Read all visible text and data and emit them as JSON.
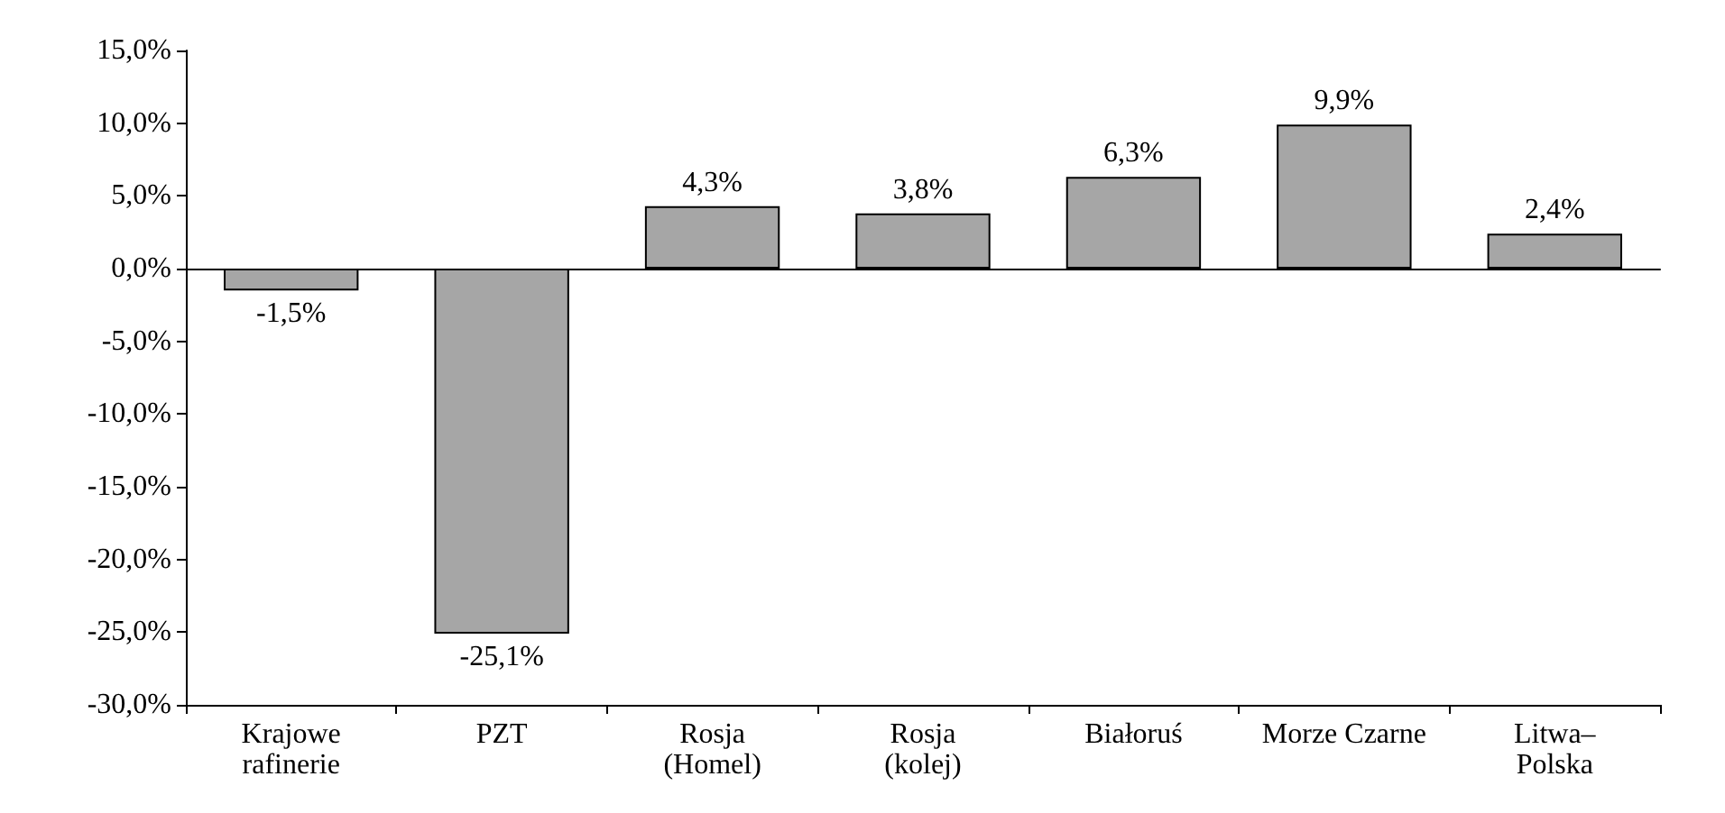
{
  "chart_data": {
    "type": "bar",
    "categories": [
      "Krajowe\nrafinerie",
      "PZT",
      "Rosja\n(Homel)",
      "Rosja\n(kolej)",
      "Białoruś",
      "Morze Czarne",
      "Litwa–\nPolska"
    ],
    "values": [
      -1.5,
      -25.1,
      4.3,
      3.8,
      6.3,
      9.9,
      2.4
    ],
    "value_labels": [
      "-1,5%",
      "-25,1%",
      "4,3%",
      "3,8%",
      "6,3%",
      "9,9%",
      "2,4%"
    ],
    "color": "#a6a6a6",
    "ylim": [
      -30,
      15
    ],
    "yticks": [
      {
        "value": -30,
        "label": "-30,0%"
      },
      {
        "value": -25,
        "label": "-25,0%"
      },
      {
        "value": -20,
        "label": "-20,0%"
      },
      {
        "value": -15,
        "label": "-15,0%"
      },
      {
        "value": -10,
        "label": "-10,0%"
      },
      {
        "value": -5,
        "label": "-5,0%"
      },
      {
        "value": 0,
        "label": "0,0%"
      },
      {
        "value": 5,
        "label": "5,0%"
      },
      {
        "value": 10,
        "label": "10,0%"
      },
      {
        "value": 15,
        "label": "15,0%"
      }
    ],
    "ylabel": null
  }
}
